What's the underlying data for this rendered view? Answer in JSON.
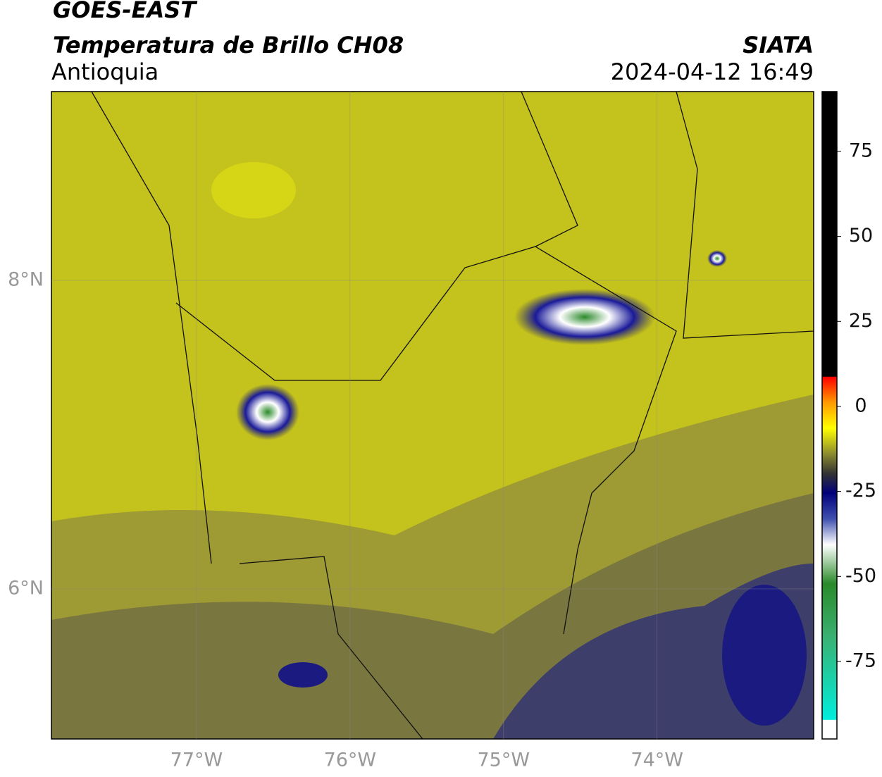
{
  "header": {
    "title": "GOES-EAST",
    "subtitle": "Temperatura de Brillo CH08",
    "region": "Antioquia",
    "source": "SIATA",
    "datetime": "2024-04-12 16:49"
  },
  "map": {
    "xlim": [
      -77.945,
      -72.98
    ],
    "ylim": [
      5.027,
      9.224
    ],
    "xticks": [
      {
        "value": -77,
        "label": "77°W"
      },
      {
        "value": -76,
        "label": "76°W"
      },
      {
        "value": -75,
        "label": "75°W"
      },
      {
        "value": -74,
        "label": "74°W"
      }
    ],
    "yticks": [
      {
        "value": 8,
        "label": "8°N"
      },
      {
        "value": 6,
        "label": "6°N"
      }
    ]
  },
  "colorbar": {
    "lim": [
      -97.8,
      92.6
    ],
    "ticks": [
      75,
      50,
      25,
      0,
      -25,
      -50,
      -75
    ]
  }
}
